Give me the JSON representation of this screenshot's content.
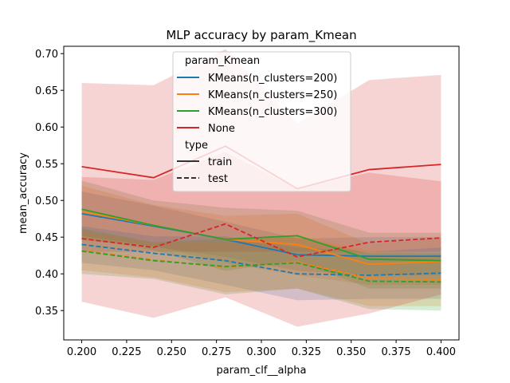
{
  "chart_data": {
    "type": "line",
    "title": "MLP accuracy by param_Kmean",
    "xlabel": "param_clf__alpha",
    "ylabel": "mean_accuracy",
    "xlim": [
      0.19,
      0.41
    ],
    "ylim": [
      0.31,
      0.71
    ],
    "xticks": [
      "0.200",
      "0.225",
      "0.250",
      "0.275",
      "0.300",
      "0.325",
      "0.350",
      "0.375",
      "0.400"
    ],
    "yticks": [
      "0.35",
      "0.40",
      "0.45",
      "0.50",
      "0.55",
      "0.60",
      "0.65",
      "0.70"
    ],
    "x": [
      0.2,
      0.24,
      0.28,
      0.32,
      0.36,
      0.4
    ],
    "grid": false,
    "legend": {
      "placement": "top-center",
      "hue_title": "param_Kmean",
      "style_title": "type",
      "hue_entries": [
        "KMeans(n_clusters=200)",
        "KMeans(n_clusters=250)",
        "KMeans(n_clusters=300)",
        "None"
      ],
      "style_entries": [
        "train",
        "test"
      ]
    },
    "series": [
      {
        "name": "KMeans(n_clusters=200)",
        "type": "train",
        "color": "#1f77b4",
        "values": [
          0.482,
          0.465,
          0.447,
          0.426,
          0.424,
          0.424
        ],
        "ci_low": [
          0.452,
          0.437,
          0.423,
          0.404,
          0.398,
          0.398
        ],
        "ci_high": [
          0.512,
          0.493,
          0.471,
          0.448,
          0.45,
          0.45
        ]
      },
      {
        "name": "KMeans(n_clusters=250)",
        "type": "train",
        "color": "#ff7f0e",
        "values": [
          0.485,
          0.466,
          0.447,
          0.44,
          0.413,
          0.417
        ],
        "ci_low": [
          0.445,
          0.438,
          0.415,
          0.398,
          0.385,
          0.385
        ],
        "ci_high": [
          0.52,
          0.494,
          0.479,
          0.482,
          0.441,
          0.449
        ]
      },
      {
        "name": "KMeans(n_clusters=300)",
        "type": "train",
        "color": "#2ca02c",
        "values": [
          0.488,
          0.466,
          0.447,
          0.452,
          0.42,
          0.418
        ],
        "ci_low": [
          0.449,
          0.432,
          0.404,
          0.418,
          0.38,
          0.38
        ],
        "ci_high": [
          0.527,
          0.5,
          0.49,
          0.486,
          0.456,
          0.456
        ]
      },
      {
        "name": "None",
        "type": "train",
        "color": "#d62728",
        "values": [
          0.546,
          0.531,
          0.574,
          0.516,
          0.542,
          0.549
        ],
        "ci_low": [
          0.43,
          0.43,
          0.43,
          0.43,
          0.43,
          0.43
        ],
        "ci_high": [
          0.66,
          0.657,
          0.706,
          0.605,
          0.664,
          0.671
        ]
      },
      {
        "name": "KMeans(n_clusters=200)",
        "type": "test",
        "color": "#1f77b4",
        "values": [
          0.44,
          0.428,
          0.418,
          0.4,
          0.398,
          0.401
        ],
        "ci_low": [
          0.415,
          0.405,
          0.385,
          0.364,
          0.366,
          0.366
        ],
        "ci_high": [
          0.465,
          0.451,
          0.451,
          0.436,
          0.43,
          0.436
        ]
      },
      {
        "name": "KMeans(n_clusters=250)",
        "type": "test",
        "color": "#ff7f0e",
        "values": [
          0.432,
          0.419,
          0.409,
          0.416,
          0.394,
          0.392
        ],
        "ci_low": [
          0.405,
          0.395,
          0.375,
          0.38,
          0.356,
          0.356
        ],
        "ci_high": [
          0.459,
          0.443,
          0.443,
          0.452,
          0.432,
          0.428
        ]
      },
      {
        "name": "KMeans(n_clusters=300)",
        "type": "test",
        "color": "#2ca02c",
        "values": [
          0.431,
          0.418,
          0.41,
          0.415,
          0.39,
          0.389
        ],
        "ci_low": [
          0.4,
          0.393,
          0.372,
          0.38,
          0.352,
          0.35
        ],
        "ci_high": [
          0.462,
          0.443,
          0.448,
          0.45,
          0.428,
          0.428
        ]
      },
      {
        "name": "None",
        "type": "test",
        "color": "#d62728",
        "values": [
          0.448,
          0.436,
          0.468,
          0.423,
          0.443,
          0.449
        ],
        "ci_low": [
          0.362,
          0.34,
          0.368,
          0.328,
          0.346,
          0.372
        ],
        "ci_high": [
          0.532,
          0.528,
          0.566,
          0.516,
          0.538,
          0.526
        ]
      }
    ]
  }
}
